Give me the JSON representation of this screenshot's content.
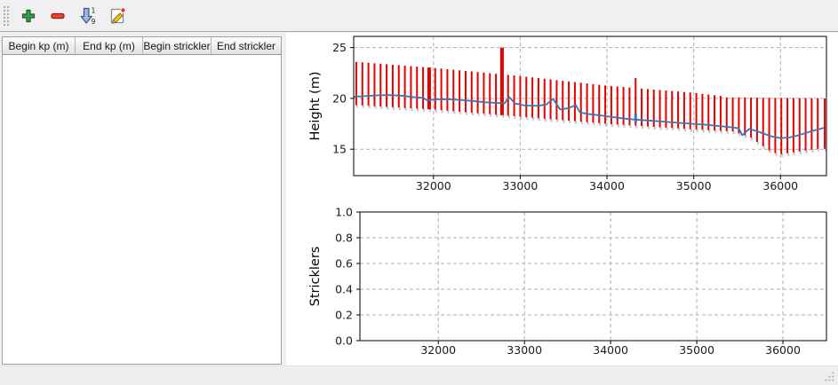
{
  "toolbar": {
    "buttons": [
      {
        "label": "Add row",
        "icon": "plus-icon"
      },
      {
        "label": "Remove row",
        "icon": "minus-icon"
      },
      {
        "label": "Sort",
        "icon": "sort-numeric-icon"
      },
      {
        "label": "Edit",
        "icon": "edit-icon"
      }
    ]
  },
  "table": {
    "columns": [
      "Begin kp (m)",
      "End kp (m)",
      "Begin strickler",
      "End strickler"
    ],
    "rows": []
  },
  "colors": {
    "bars": "#e60000",
    "bar_shadow": "#c8c8c8",
    "line": "#3a76b4",
    "grid": "#b0b0b0",
    "canvas": "#ffffff"
  },
  "chart_data": [
    {
      "type": "line",
      "title": "",
      "xlabel": "",
      "ylabel": "Height (m)",
      "xlim": [
        31080,
        36530
      ],
      "ylim": [
        12.4,
        26.1
      ],
      "xticks": [
        32000,
        33000,
        34000,
        35000,
        36000
      ],
      "xtick_labels": [
        "32000",
        "33000",
        "34000",
        "35000",
        "36000"
      ],
      "yticks": [
        15,
        20,
        25
      ],
      "ytick_labels": [
        "15",
        "20",
        "25"
      ],
      "grid": true,
      "grid_color": "#b0b0b0",
      "series": [
        {
          "name": "cross-section-extents",
          "type": "vbars",
          "color": "#e60000",
          "shadow_color": "#c8c8c8",
          "wide_kp": [
            31950,
            32790
          ],
          "kp": [
            31110,
            31180,
            31250,
            31320,
            31390,
            31460,
            31530,
            31600,
            31670,
            31740,
            31810,
            31880,
            31950,
            32020,
            32090,
            32160,
            32230,
            32300,
            32370,
            32440,
            32510,
            32580,
            32650,
            32720,
            32790,
            32860,
            32930,
            33000,
            33070,
            33140,
            33210,
            33280,
            33350,
            33420,
            33490,
            33560,
            33630,
            33700,
            33770,
            33840,
            33910,
            33980,
            34050,
            34120,
            34190,
            34260,
            34330,
            34400,
            34470,
            34540,
            34610,
            34680,
            34750,
            34820,
            34890,
            34960,
            35030,
            35100,
            35170,
            35240,
            35310,
            35380,
            35450,
            35520,
            35590,
            35660,
            35730,
            35800,
            35870,
            35940,
            36010,
            36080,
            36150,
            36220,
            36290,
            36360,
            36430,
            36510
          ],
          "top": [
            23.59,
            23.55,
            23.5,
            23.45,
            23.41,
            23.36,
            23.31,
            23.27,
            23.22,
            23.17,
            23.13,
            23.08,
            23.03,
            22.98,
            22.93,
            22.87,
            22.82,
            22.76,
            22.7,
            22.65,
            22.59,
            22.54,
            22.48,
            22.42,
            25.0,
            22.31,
            22.26,
            22.2,
            22.13,
            22.07,
            22.0,
            21.93,
            21.87,
            21.8,
            21.73,
            21.67,
            21.6,
            21.54,
            21.47,
            21.4,
            21.34,
            21.27,
            21.22,
            21.17,
            21.12,
            21.07,
            22.0,
            20.97,
            20.92,
            20.87,
            20.82,
            20.77,
            20.73,
            20.68,
            20.63,
            20.58,
            20.52,
            20.45,
            20.38,
            20.31,
            20.24,
            20.1,
            20.1,
            20.1,
            20.1,
            20.08,
            20.08,
            20.06,
            20.06,
            20.05,
            20.05,
            20.04,
            20.04,
            20.03,
            20.03,
            20.02,
            20.02,
            20.0
          ],
          "bottom": [
            19.34,
            19.31,
            19.27,
            19.24,
            19.2,
            19.17,
            19.13,
            19.1,
            19.06,
            19.03,
            18.99,
            18.96,
            18.92,
            18.89,
            18.84,
            18.79,
            18.74,
            18.69,
            18.64,
            18.59,
            18.54,
            18.49,
            18.45,
            18.4,
            18.35,
            18.3,
            18.25,
            18.2,
            18.15,
            18.1,
            18.05,
            18.0,
            17.96,
            17.91,
            17.86,
            17.81,
            17.76,
            17.71,
            17.66,
            17.61,
            17.56,
            17.51,
            17.47,
            17.43,
            17.4,
            17.36,
            17.32,
            17.28,
            17.24,
            17.2,
            17.16,
            17.13,
            17.09,
            17.05,
            17.01,
            16.97,
            16.94,
            16.91,
            16.87,
            16.84,
            16.81,
            16.78,
            16.75,
            16.56,
            16.37,
            16.14,
            15.72,
            15.3,
            14.88,
            14.62,
            14.51,
            14.6,
            14.69,
            14.78,
            14.86,
            14.95,
            15.04,
            15.05
          ]
        },
        {
          "name": "marker-34330",
          "type": "vline",
          "color": "#3a76b4",
          "x": 34330,
          "y0": 17.6,
          "y1": 18.55
        },
        {
          "name": "mean-bed-level",
          "type": "line",
          "color": "#3a76b4",
          "points": [
            [
              31080,
              20.15
            ],
            [
              31200,
              20.22
            ],
            [
              31350,
              20.3
            ],
            [
              31500,
              20.32
            ],
            [
              31650,
              20.25
            ],
            [
              31800,
              20.1
            ],
            [
              31880,
              20.05
            ],
            [
              31930,
              19.8
            ],
            [
              32000,
              19.9
            ],
            [
              32150,
              19.92
            ],
            [
              32300,
              19.85
            ],
            [
              32450,
              19.75
            ],
            [
              32600,
              19.62
            ],
            [
              32750,
              19.55
            ],
            [
              32820,
              19.5
            ],
            [
              32870,
              20.15
            ],
            [
              32940,
              19.5
            ],
            [
              33050,
              19.3
            ],
            [
              33200,
              19.27
            ],
            [
              33300,
              19.4
            ],
            [
              33380,
              19.95
            ],
            [
              33460,
              18.9
            ],
            [
              33560,
              19.05
            ],
            [
              33640,
              19.35
            ],
            [
              33690,
              18.6
            ],
            [
              33800,
              18.45
            ],
            [
              33950,
              18.3
            ],
            [
              34100,
              18.12
            ],
            [
              34250,
              17.97
            ],
            [
              34400,
              17.87
            ],
            [
              34550,
              17.78
            ],
            [
              34700,
              17.68
            ],
            [
              34850,
              17.58
            ],
            [
              35000,
              17.5
            ],
            [
              35150,
              17.4
            ],
            [
              35300,
              17.28
            ],
            [
              35450,
              17.15
            ],
            [
              35520,
              17.05
            ],
            [
              35560,
              16.38
            ],
            [
              35640,
              17.0
            ],
            [
              35720,
              16.8
            ],
            [
              35800,
              16.55
            ],
            [
              35900,
              16.25
            ],
            [
              36000,
              16.1
            ],
            [
              36100,
              16.15
            ],
            [
              36200,
              16.35
            ],
            [
              36350,
              16.75
            ],
            [
              36500,
              17.1
            ]
          ]
        }
      ]
    },
    {
      "type": "line",
      "title": "",
      "xlabel": "",
      "ylabel": "Stricklers",
      "xlim": [
        31090,
        36505
      ],
      "ylim": [
        0.0,
        1.0
      ],
      "xticks": [
        32000,
        33000,
        34000,
        35000,
        36000
      ],
      "xtick_labels": [
        "32000",
        "33000",
        "34000",
        "35000",
        "36000"
      ],
      "yticks": [
        0.0,
        0.2,
        0.4,
        0.6,
        0.8,
        1.0
      ],
      "ytick_labels": [
        "0.0",
        "0.2",
        "0.4",
        "0.6",
        "0.8",
        "1.0"
      ],
      "grid": true,
      "grid_color": "#b0b0b0",
      "series": []
    }
  ]
}
